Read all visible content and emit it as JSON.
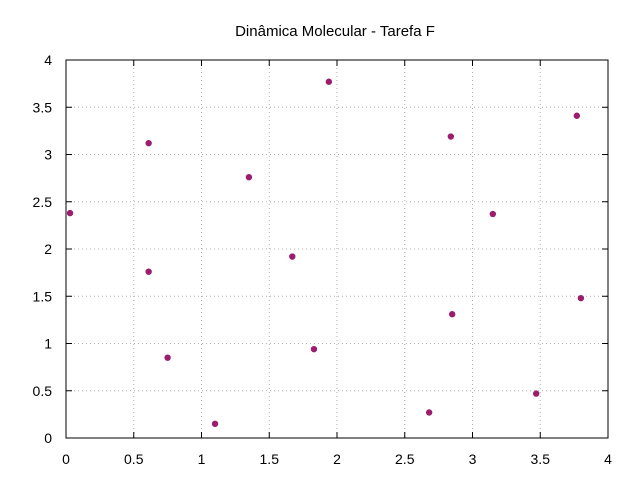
{
  "chart_data": {
    "type": "scatter",
    "title": "Dinâmica Molecular - Tarefa F",
    "xlabel": "",
    "ylabel": "",
    "xlim": [
      0,
      4
    ],
    "ylim": [
      0,
      4
    ],
    "x_ticks": [
      "0",
      "0.5",
      "1",
      "1.5",
      "2",
      "2.5",
      "3",
      "3.5",
      "4"
    ],
    "y_ticks": [
      "0",
      "0.5",
      "1",
      "1.5",
      "2",
      "2.5",
      "3",
      "3.5",
      "4"
    ],
    "grid": true,
    "grid_style": "dotted",
    "legend": "none",
    "series": [
      {
        "color": "#9b1e6e",
        "marker": "filled-circle",
        "points": [
          {
            "x": 0.03,
            "y": 2.38
          },
          {
            "x": 0.61,
            "y": 3.12
          },
          {
            "x": 0.61,
            "y": 1.76
          },
          {
            "x": 0.75,
            "y": 0.85
          },
          {
            "x": 1.1,
            "y": 0.15
          },
          {
            "x": 1.35,
            "y": 2.76
          },
          {
            "x": 1.67,
            "y": 1.92
          },
          {
            "x": 1.83,
            "y": 0.94
          },
          {
            "x": 1.94,
            "y": 3.77
          },
          {
            "x": 2.68,
            "y": 0.27
          },
          {
            "x": 2.84,
            "y": 3.19
          },
          {
            "x": 2.85,
            "y": 1.31
          },
          {
            "x": 3.15,
            "y": 2.37
          },
          {
            "x": 3.47,
            "y": 0.47
          },
          {
            "x": 3.77,
            "y": 3.41
          },
          {
            "x": 3.8,
            "y": 1.48
          }
        ]
      }
    ]
  }
}
